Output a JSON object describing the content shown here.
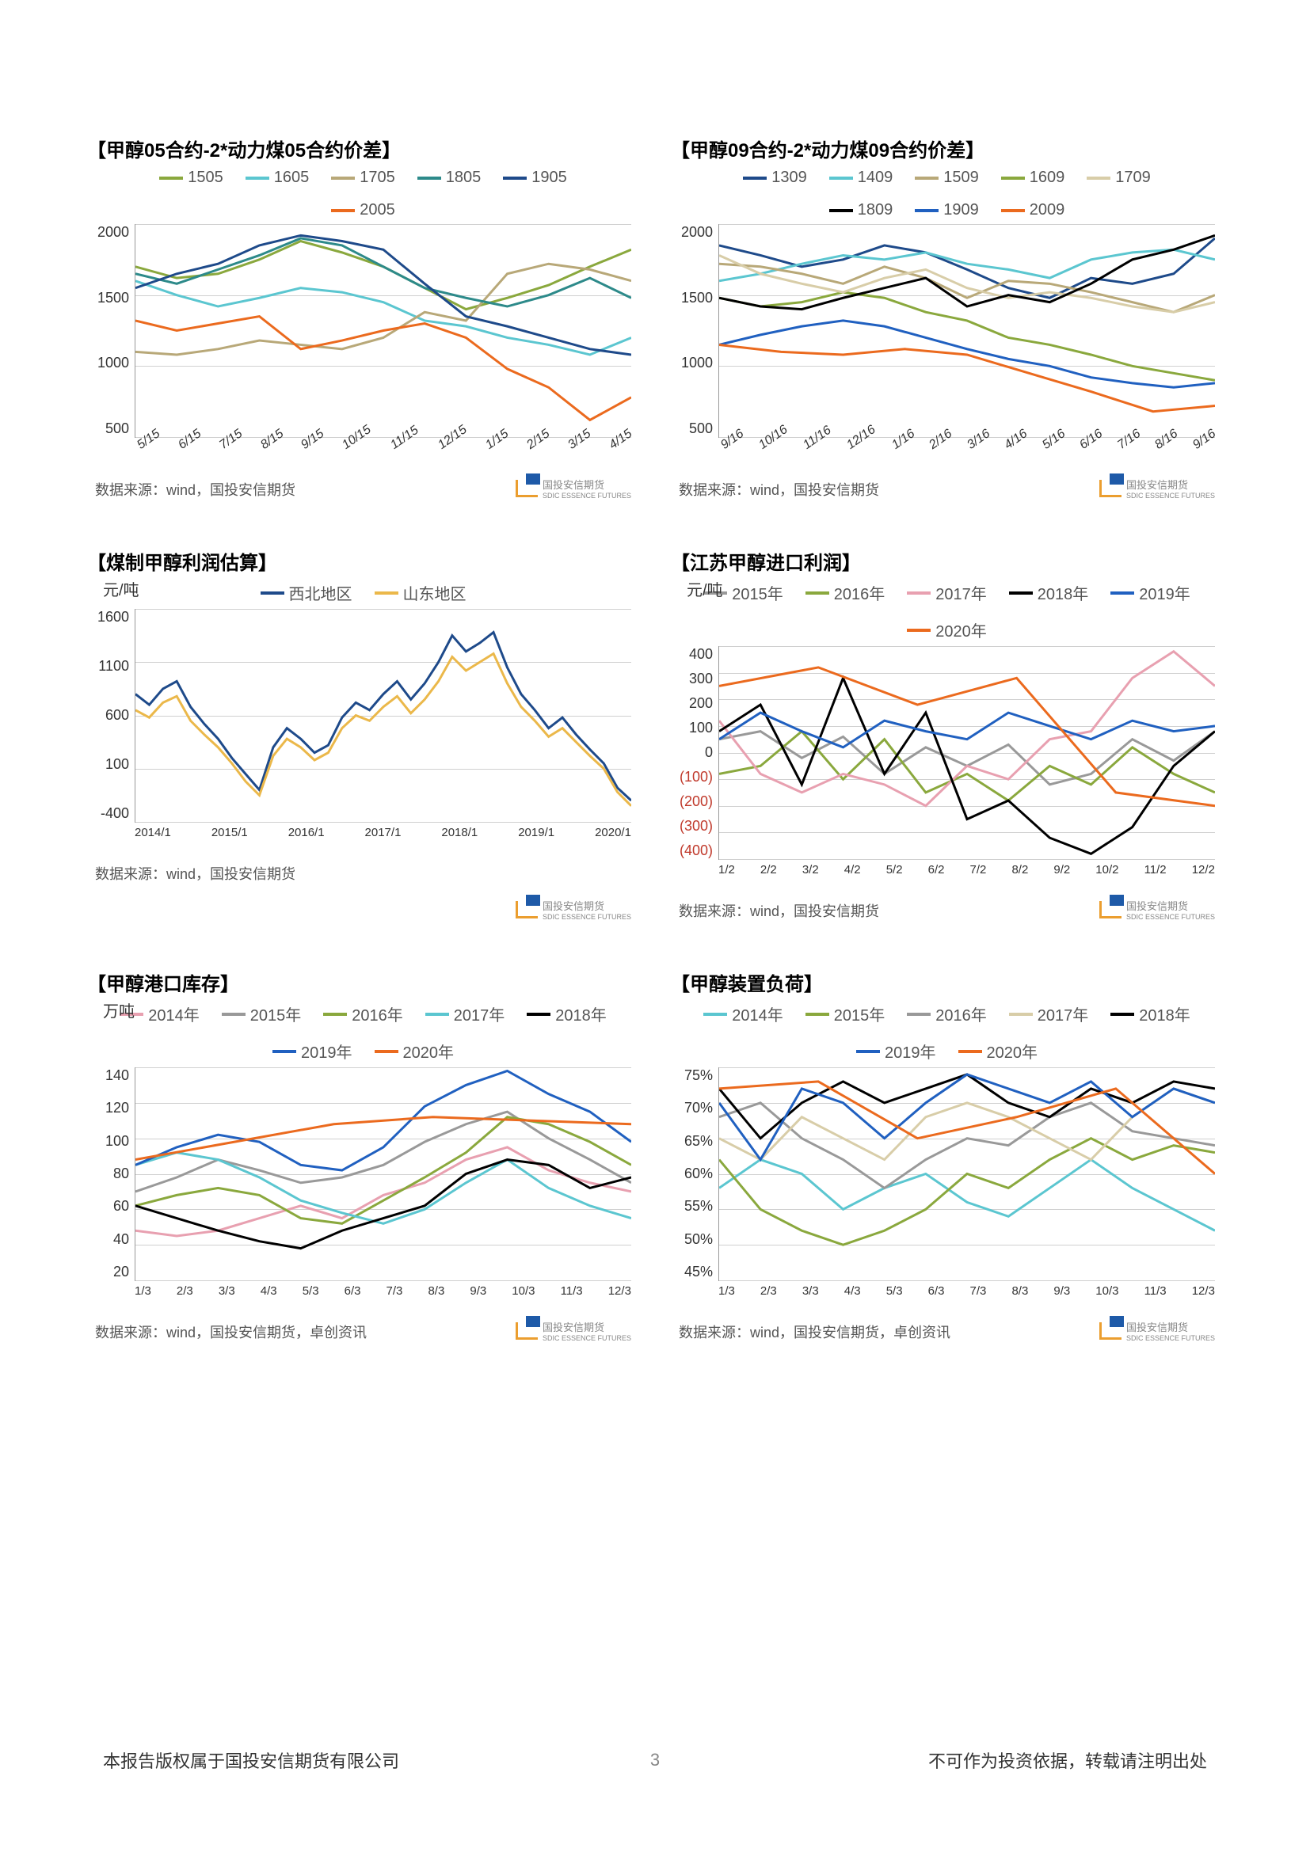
{
  "footer": {
    "left": "本报告版权属于国投安信期货有限公司",
    "right": "不可作为投资依据，转载请注明出处",
    "page": "3"
  },
  "source": {
    "a": "数据来源：wind，国投安信期货",
    "b": "数据来源：wind，国投安信期货，卓创资讯"
  },
  "logo": {
    "text": "国投安信期货",
    "sub": "SDIC ESSENCE FUTURES"
  },
  "colors": {
    "olive": "#8aa83d",
    "cyan": "#5bc6d0",
    "tan": "#b8a878",
    "teal": "#2d8a8a",
    "navy": "#1e4a8a",
    "orange": "#eb6a1e",
    "black": "#000000",
    "blue": "#2060c0",
    "grey": "#999999",
    "pink": "#e8a0b0",
    "yellow": "#ebb84a",
    "ltan": "#d8cda8"
  },
  "charts": [
    {
      "title": "【甲醇05合约-2*动力煤05合约价差】",
      "legend": [
        [
          "1505",
          "olive"
        ],
        [
          "1605",
          "cyan"
        ],
        [
          "1705",
          "tan"
        ],
        [
          "1805",
          "teal"
        ],
        [
          "1905",
          "navy"
        ],
        [
          "2005",
          "orange"
        ]
      ],
      "ylim": [
        500,
        2000
      ],
      "yticks": [
        2000,
        1500,
        1000,
        500
      ],
      "xticks": [
        "5/15",
        "6/15",
        "7/15",
        "8/15",
        "9/15",
        "10/15",
        "11/15",
        "12/15",
        "1/15",
        "2/15",
        "3/15",
        "4/15"
      ],
      "xrot": true,
      "src": "a",
      "series": [
        {
          "c": "olive",
          "d": [
            1700,
            1620,
            1650,
            1750,
            1880,
            1800,
            1700,
            1550,
            1400,
            1480,
            1570,
            1700,
            1820
          ]
        },
        {
          "c": "cyan",
          "d": [
            1600,
            1500,
            1420,
            1480,
            1550,
            1520,
            1450,
            1320,
            1280,
            1200,
            1150,
            1080,
            1200
          ]
        },
        {
          "c": "tan",
          "d": [
            1100,
            1080,
            1120,
            1180,
            1150,
            1120,
            1200,
            1380,
            1320,
            1650,
            1720,
            1680,
            1600
          ]
        },
        {
          "c": "teal",
          "d": [
            1650,
            1580,
            1680,
            1780,
            1900,
            1850,
            1700,
            1550,
            1480,
            1420,
            1500,
            1620,
            1480
          ]
        },
        {
          "c": "navy",
          "d": [
            1550,
            1650,
            1720,
            1850,
            1920,
            1880,
            1820,
            1580,
            1350,
            1280,
            1200,
            1120,
            1080
          ]
        },
        {
          "c": "orange",
          "d": [
            1320,
            1250,
            1300,
            1350,
            1120,
            1180,
            1250,
            1300,
            1200,
            980,
            850,
            620,
            780
          ]
        }
      ]
    },
    {
      "title": "【甲醇09合约-2*动力煤09合约价差】",
      "legend": [
        [
          "1309",
          "navy"
        ],
        [
          "1409",
          "cyan"
        ],
        [
          "1509",
          "tan"
        ],
        [
          "1609",
          "olive"
        ],
        [
          "1709",
          "ltan"
        ],
        [
          "1809",
          "black"
        ],
        [
          "1909",
          "blue"
        ],
        [
          "2009",
          "orange"
        ]
      ],
      "ylim": [
        500,
        2000
      ],
      "yticks": [
        2000,
        1500,
        1000,
        500
      ],
      "xticks": [
        "9/16",
        "10/16",
        "11/16",
        "12/16",
        "1/16",
        "2/16",
        "3/16",
        "4/16",
        "5/16",
        "6/16",
        "7/16",
        "8/16",
        "9/16"
      ],
      "xrot": true,
      "src": "a",
      "series": [
        {
          "c": "navy",
          "d": [
            1850,
            1780,
            1700,
            1750,
            1850,
            1800,
            1680,
            1550,
            1480,
            1620,
            1580,
            1650,
            1900
          ]
        },
        {
          "c": "cyan",
          "d": [
            1600,
            1650,
            1720,
            1780,
            1750,
            1800,
            1720,
            1680,
            1620,
            1750,
            1800,
            1820,
            1750
          ]
        },
        {
          "c": "tan",
          "d": [
            1720,
            1700,
            1650,
            1580,
            1700,
            1620,
            1480,
            1600,
            1580,
            1520,
            1450,
            1380,
            1500
          ]
        },
        {
          "c": "olive",
          "d": [
            1480,
            1420,
            1450,
            1520,
            1480,
            1380,
            1320,
            1200,
            1150,
            1080,
            1000,
            950,
            900
          ]
        },
        {
          "c": "ltan",
          "d": [
            1780,
            1650,
            1580,
            1520,
            1620,
            1680,
            1550,
            1480,
            1520,
            1480,
            1420,
            1380,
            1450
          ]
        },
        {
          "c": "black",
          "d": [
            1480,
            1420,
            1400,
            1480,
            1550,
            1620,
            1420,
            1500,
            1450,
            1580,
            1750,
            1820,
            1920
          ]
        },
        {
          "c": "blue",
          "d": [
            1150,
            1220,
            1280,
            1320,
            1280,
            1200,
            1120,
            1050,
            1000,
            920,
            880,
            850,
            880
          ]
        },
        {
          "c": "orange",
          "d": [
            1150,
            1100,
            1080,
            1120,
            1080,
            950,
            820,
            680,
            720
          ]
        }
      ]
    },
    {
      "title": "【煤制甲醇利润估算】",
      "ylab": "元/吨",
      "legend": [
        [
          "西北地区",
          "navy"
        ],
        [
          "山东地区",
          "yellow"
        ]
      ],
      "ylim": [
        -400,
        1600
      ],
      "yticks": [
        1600,
        1100,
        600,
        100,
        -400
      ],
      "xticks": [
        "2014/1",
        "2015/1",
        "2016/1",
        "2017/1",
        "2018/1",
        "2019/1",
        "2020/1"
      ],
      "xrot": false,
      "src": "a",
      "series": [
        {
          "c": "navy",
          "d": [
            800,
            700,
            850,
            920,
            680,
            520,
            380,
            200,
            50,
            -100,
            300,
            480,
            380,
            250,
            320,
            580,
            720,
            650,
            800,
            920,
            750,
            900,
            1100,
            1350,
            1200,
            1280,
            1380,
            1050,
            800,
            650,
            480,
            580,
            420,
            280,
            150,
            -80,
            -200
          ]
        },
        {
          "c": "yellow",
          "d": [
            650,
            580,
            720,
            780,
            550,
            420,
            300,
            150,
            -20,
            -150,
            220,
            380,
            300,
            180,
            250,
            480,
            600,
            550,
            680,
            780,
            620,
            750,
            920,
            1150,
            1020,
            1100,
            1180,
            900,
            680,
            550,
            400,
            480,
            350,
            220,
            100,
            -120,
            -250
          ]
        }
      ]
    },
    {
      "title": "【江苏甲醇进口利润】",
      "ylab": "元/吨",
      "legend": [
        [
          "2015年",
          "grey"
        ],
        [
          "2016年",
          "olive"
        ],
        [
          "2017年",
          "pink"
        ],
        [
          "2018年",
          "black"
        ],
        [
          "2019年",
          "blue"
        ],
        [
          "2020年",
          "orange"
        ]
      ],
      "ylim": [
        -400,
        400
      ],
      "yticks": [
        400,
        300,
        200,
        100,
        0,
        -100,
        -200,
        -300,
        -400
      ],
      "negstart": 5,
      "xticks": [
        "1/2",
        "2/2",
        "3/2",
        "4/2",
        "5/2",
        "6/2",
        "7/2",
        "8/2",
        "9/2",
        "10/2",
        "11/2",
        "12/2"
      ],
      "xrot": false,
      "src": "a",
      "series": [
        {
          "c": "grey",
          "d": [
            50,
            80,
            -20,
            60,
            -80,
            20,
            -50,
            30,
            -120,
            -80,
            50,
            -30,
            80
          ]
        },
        {
          "c": "olive",
          "d": [
            -80,
            -50,
            80,
            -100,
            50,
            -150,
            -80,
            -180,
            -50,
            -120,
            20,
            -80,
            -150
          ]
        },
        {
          "c": "pink",
          "d": [
            120,
            -80,
            -150,
            -80,
            -120,
            -200,
            -50,
            -100,
            50,
            80,
            280,
            380,
            250
          ]
        },
        {
          "c": "black",
          "d": [
            80,
            180,
            -120,
            280,
            -80,
            150,
            -250,
            -180,
            -320,
            -380,
            -280,
            -50,
            80
          ]
        },
        {
          "c": "blue",
          "d": [
            50,
            150,
            80,
            20,
            120,
            80,
            50,
            150,
            100,
            50,
            120,
            80,
            100
          ]
        },
        {
          "c": "orange",
          "d": [
            250,
            320,
            180,
            280,
            -150,
            -200
          ]
        }
      ]
    },
    {
      "title": "【甲醇港口库存】",
      "ylab": "万吨",
      "legend": [
        [
          "2014年",
          "pink"
        ],
        [
          "2015年",
          "grey"
        ],
        [
          "2016年",
          "olive"
        ],
        [
          "2017年",
          "cyan"
        ],
        [
          "2018年",
          "black"
        ],
        [
          "2019年",
          "blue"
        ],
        [
          "2020年",
          "orange"
        ]
      ],
      "ylim": [
        20,
        140
      ],
      "yticks": [
        140,
        120,
        100,
        80,
        60,
        40,
        20
      ],
      "xticks": [
        "1/3",
        "2/3",
        "3/3",
        "4/3",
        "5/3",
        "6/3",
        "7/3",
        "8/3",
        "9/3",
        "10/3",
        "11/3",
        "12/3"
      ],
      "xrot": false,
      "src": "b",
      "series": [
        {
          "c": "pink",
          "d": [
            48,
            45,
            48,
            55,
            62,
            55,
            68,
            75,
            88,
            95,
            82,
            75,
            70
          ]
        },
        {
          "c": "grey",
          "d": [
            70,
            78,
            88,
            82,
            75,
            78,
            85,
            98,
            108,
            115,
            100,
            88,
            75
          ]
        },
        {
          "c": "olive",
          "d": [
            62,
            68,
            72,
            68,
            55,
            52,
            65,
            78,
            92,
            112,
            108,
            98,
            85
          ]
        },
        {
          "c": "cyan",
          "d": [
            85,
            92,
            88,
            78,
            65,
            58,
            52,
            60,
            75,
            88,
            72,
            62,
            55
          ]
        },
        {
          "c": "black",
          "d": [
            62,
            55,
            48,
            42,
            38,
            48,
            55,
            62,
            80,
            88,
            85,
            72,
            78
          ]
        },
        {
          "c": "blue",
          "d": [
            85,
            95,
            102,
            98,
            85,
            82,
            95,
            118,
            130,
            138,
            125,
            115,
            98
          ]
        },
        {
          "c": "orange",
          "d": [
            88,
            98,
            108,
            112,
            110,
            108
          ]
        }
      ]
    },
    {
      "title": "【甲醇装置负荷】",
      "legend": [
        [
          "2014年",
          "cyan"
        ],
        [
          "2015年",
          "olive"
        ],
        [
          "2016年",
          "grey"
        ],
        [
          "2017年",
          "ltan"
        ],
        [
          "2018年",
          "black"
        ],
        [
          "2019年",
          "blue"
        ],
        [
          "2020年",
          "orange"
        ]
      ],
      "ylim": [
        45,
        75
      ],
      "yticks": [
        "75%",
        "70%",
        "65%",
        "60%",
        "55%",
        "50%",
        "45%"
      ],
      "xticks": [
        "1/3",
        "2/3",
        "3/3",
        "4/3",
        "5/3",
        "6/3",
        "7/3",
        "8/3",
        "9/3",
        "10/3",
        "11/3",
        "12/3"
      ],
      "xrot": false,
      "src": "b",
      "series": [
        {
          "c": "cyan",
          "d": [
            58,
            62,
            60,
            55,
            58,
            60,
            56,
            54,
            58,
            62,
            58,
            55,
            52
          ]
        },
        {
          "c": "olive",
          "d": [
            62,
            55,
            52,
            50,
            52,
            55,
            60,
            58,
            62,
            65,
            62,
            64,
            63
          ]
        },
        {
          "c": "grey",
          "d": [
            68,
            70,
            65,
            62,
            58,
            62,
            65,
            64,
            68,
            70,
            66,
            65,
            64
          ]
        },
        {
          "c": "ltan",
          "d": [
            65,
            62,
            68,
            65,
            62,
            68,
            70,
            68,
            65,
            62,
            68,
            72,
            70
          ]
        },
        {
          "c": "black",
          "d": [
            72,
            65,
            70,
            73,
            70,
            72,
            74,
            70,
            68,
            72,
            70,
            73,
            72
          ]
        },
        {
          "c": "blue",
          "d": [
            70,
            62,
            72,
            70,
            65,
            70,
            74,
            72,
            70,
            73,
            68,
            72,
            70
          ]
        },
        {
          "c": "orange",
          "d": [
            72,
            73,
            65,
            68,
            72,
            60
          ]
        }
      ]
    }
  ]
}
